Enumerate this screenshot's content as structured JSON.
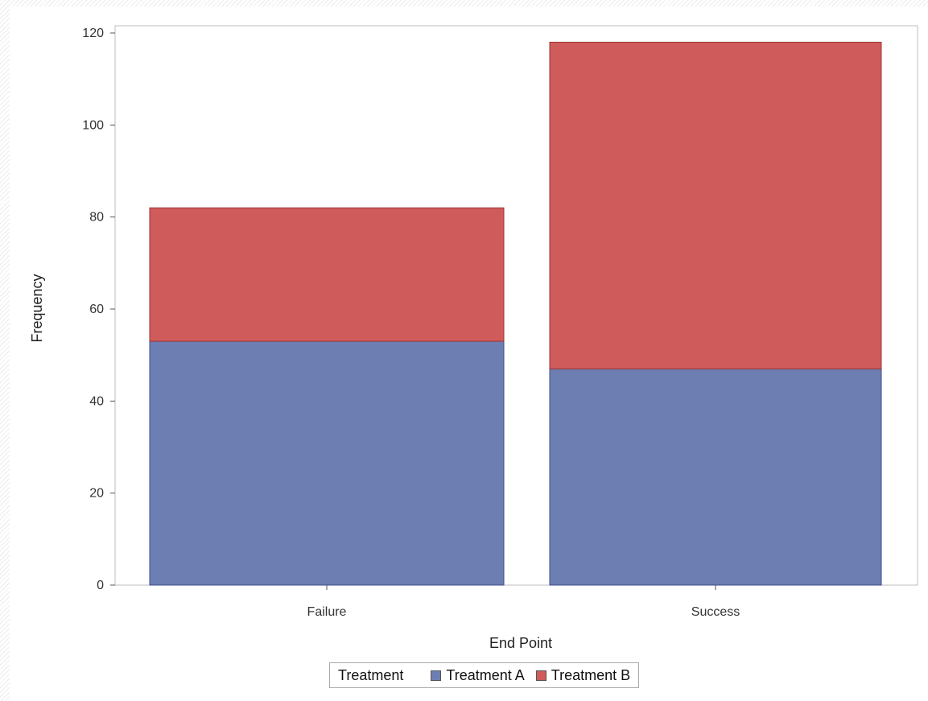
{
  "chart_data": {
    "type": "bar",
    "stacked": true,
    "categories": [
      "Failure",
      "Success"
    ],
    "series": [
      {
        "name": "Treatment A",
        "values": [
          53,
          47
        ],
        "color": "#6d7eb2"
      },
      {
        "name": "Treatment B",
        "values": [
          29,
          71
        ],
        "color": "#d05b5b"
      }
    ],
    "xlabel": "End Point",
    "ylabel": "Frequency",
    "ylim": [
      0,
      120
    ],
    "yticks": [
      0,
      20,
      40,
      60,
      80,
      100,
      120
    ],
    "ytick_labels": [
      "0",
      "20",
      "40",
      "60",
      "80",
      "100",
      "120"
    ],
    "grid": false,
    "legend": {
      "title": "Treatment",
      "placement": "bottom-center"
    }
  }
}
